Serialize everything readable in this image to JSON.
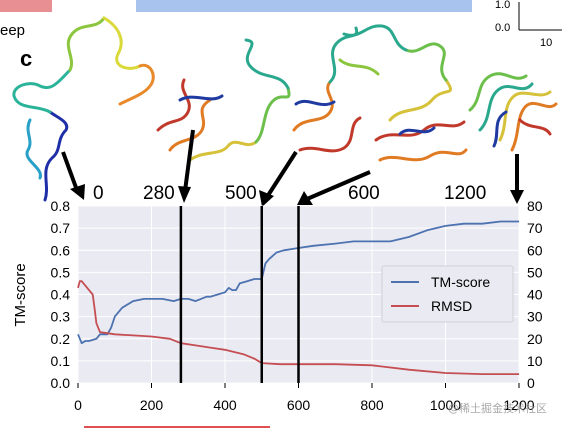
{
  "panel_label": "c",
  "fragment_text": "eep",
  "inset_ticks": [
    "1.0",
    "0.0",
    "10"
  ],
  "snapshot_labels": [
    "0",
    "280",
    "500",
    "600",
    "1200"
  ],
  "watermark": "@稀土掘金技术社区",
  "colors": {
    "tm_line": "#4c72b0",
    "rmsd_line": "#c44e52",
    "plot_bg": "#eaeaf2",
    "top_pink": "#e88f93",
    "top_blue": "#a8c3ee"
  },
  "chart_data": {
    "type": "line",
    "xlabel": "",
    "ylabel": "TM-score",
    "ylabel_right": "",
    "xlim": [
      0,
      1200
    ],
    "ylim": [
      0,
      0.8
    ],
    "ylim_right": [
      0,
      80
    ],
    "x_ticks": [
      "0",
      "200",
      "400",
      "600",
      "800",
      "1000",
      "1200"
    ],
    "y_ticks": [
      "0.0",
      "0.1",
      "0.2",
      "0.3",
      "0.4",
      "0.5",
      "0.6",
      "0.7",
      "0.8"
    ],
    "y_ticks_right": [
      "0",
      "10",
      "20",
      "30",
      "40",
      "50",
      "60",
      "70",
      "80"
    ],
    "grid": true,
    "legend_position": "center-right",
    "markers": [
      280,
      500,
      600
    ],
    "series": [
      {
        "name": "TM-score",
        "axis": "left",
        "x": [
          0,
          10,
          20,
          30,
          50,
          60,
          80,
          90,
          100,
          120,
          150,
          180,
          200,
          230,
          260,
          280,
          300,
          320,
          350,
          360,
          380,
          400,
          410,
          420,
          430,
          440,
          460,
          480,
          490,
          500,
          510,
          520,
          540,
          560,
          600,
          640,
          700,
          750,
          800,
          850,
          900,
          950,
          1000,
          1050,
          1100,
          1150,
          1200
        ],
        "y": [
          0.22,
          0.18,
          0.19,
          0.19,
          0.2,
          0.22,
          0.22,
          0.25,
          0.3,
          0.34,
          0.37,
          0.38,
          0.38,
          0.38,
          0.37,
          0.38,
          0.38,
          0.37,
          0.39,
          0.39,
          0.4,
          0.41,
          0.43,
          0.42,
          0.42,
          0.45,
          0.46,
          0.47,
          0.47,
          0.47,
          0.54,
          0.56,
          0.59,
          0.6,
          0.61,
          0.62,
          0.63,
          0.64,
          0.64,
          0.64,
          0.66,
          0.69,
          0.71,
          0.72,
          0.72,
          0.73,
          0.73
        ]
      },
      {
        "name": "RMSD",
        "axis": "right",
        "x": [
          0,
          5,
          10,
          20,
          30,
          40,
          45,
          50,
          55,
          60,
          80,
          100,
          150,
          200,
          250,
          280,
          320,
          360,
          400,
          450,
          480,
          500,
          550,
          600,
          700,
          800,
          900,
          1000,
          1100,
          1200
        ],
        "y": [
          43,
          46,
          46,
          44,
          42,
          40,
          34,
          27,
          25,
          23,
          22.5,
          22,
          21.5,
          21,
          20,
          18,
          17,
          16,
          15,
          13,
          11,
          9,
          8.5,
          8.5,
          8.5,
          8,
          6,
          4.5,
          4,
          4
        ]
      }
    ]
  }
}
